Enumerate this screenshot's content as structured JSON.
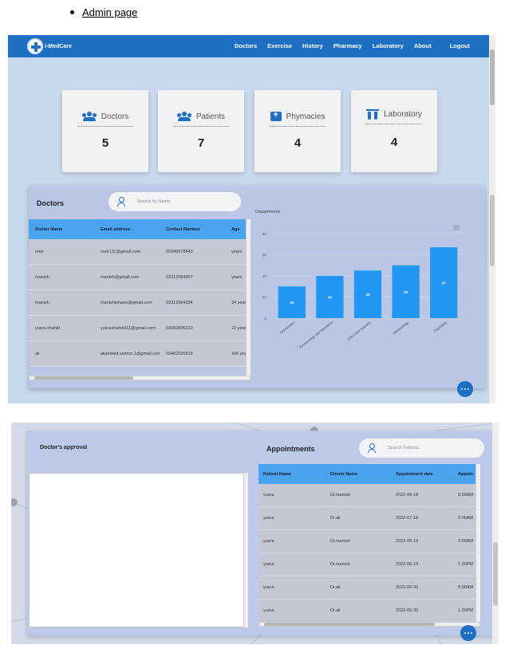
{
  "heading": {
    "bullet": "Admin page"
  },
  "navbar": {
    "logo_text": "i-MedCare",
    "links": [
      "Doctors",
      "Exercise",
      "History",
      "Pharmacy",
      "Laboratory",
      "About",
      "Logout"
    ]
  },
  "stats": [
    {
      "label": "Doctors",
      "value": "5",
      "icon": "users-icon"
    },
    {
      "label": "Patients",
      "value": "7",
      "icon": "users-icon"
    },
    {
      "label": "Phymacies",
      "value": "4",
      "icon": "first-aid-kit-icon"
    },
    {
      "label": "Laboratory",
      "value": "4",
      "icon": "test-tubes-icon"
    }
  ],
  "doctors_panel": {
    "title": "Doctors",
    "search_placeholder": "Search by Name",
    "columns": [
      "Doctor Name",
      "Email address",
      "Contact Number",
      "Age"
    ],
    "rows": [
      [
        "noor",
        "noor111@gmail.com",
        "02345678543",
        "years"
      ],
      [
        "manish",
        "manish@gmail.com",
        "03312064907",
        "years"
      ],
      [
        "manish",
        "manishlohano@gmail.com",
        "03312964294",
        "34 years"
      ],
      [
        "yusra shahid",
        "yusrashahid111@gmail.com",
        "03082805310",
        "22 years"
      ],
      [
        "ali",
        "aliahmed.samoo.1@gmail.com",
        "03402036919",
        "166 years"
      ]
    ]
  },
  "chart_data": {
    "type": "bar",
    "title": "Departments",
    "categories": [
      "Orthopedics",
      "Gynaecology and Obstetrics",
      "Chest and Vascular",
      "Dermatology",
      "Psychiatry"
    ],
    "values": [
      30,
      40,
      45,
      50,
      67
    ],
    "ylim": [
      0,
      80
    ],
    "yticks": [
      0,
      20,
      40,
      60,
      80
    ],
    "grid": true,
    "color": "#2196f3",
    "menu_icon": "hamburger-icon"
  },
  "approval_panel": {
    "title": "Doctor's approval"
  },
  "appointments_panel": {
    "title": "Appointments",
    "search_placeholder": "Search Patients",
    "columns": [
      "Patient Name",
      "Docotr Name",
      "Appointment date",
      "Appoin"
    ],
    "rows": [
      [
        "yusra",
        "Dr.manish",
        "2022-06-18",
        "9:30AM"
      ],
      [
        "yusra",
        "Dr.ali",
        "2022-07-18",
        "2:00AM"
      ],
      [
        "yusra",
        "Dr.manish",
        "2022-06-19",
        "2:00AM"
      ],
      [
        "yusra",
        "Dr.manish",
        "2022-06-19",
        "1:30PM"
      ],
      [
        "yusra",
        "Dr.ali",
        "2022-06-20",
        "5:00AM"
      ],
      [
        "yusra",
        "Dr.ali",
        "2022-06-20",
        "1:30PM"
      ]
    ]
  },
  "colors": {
    "primary": "#1e6fc4",
    "header_row": "#4aa3ee",
    "bar": "#2196f3"
  }
}
